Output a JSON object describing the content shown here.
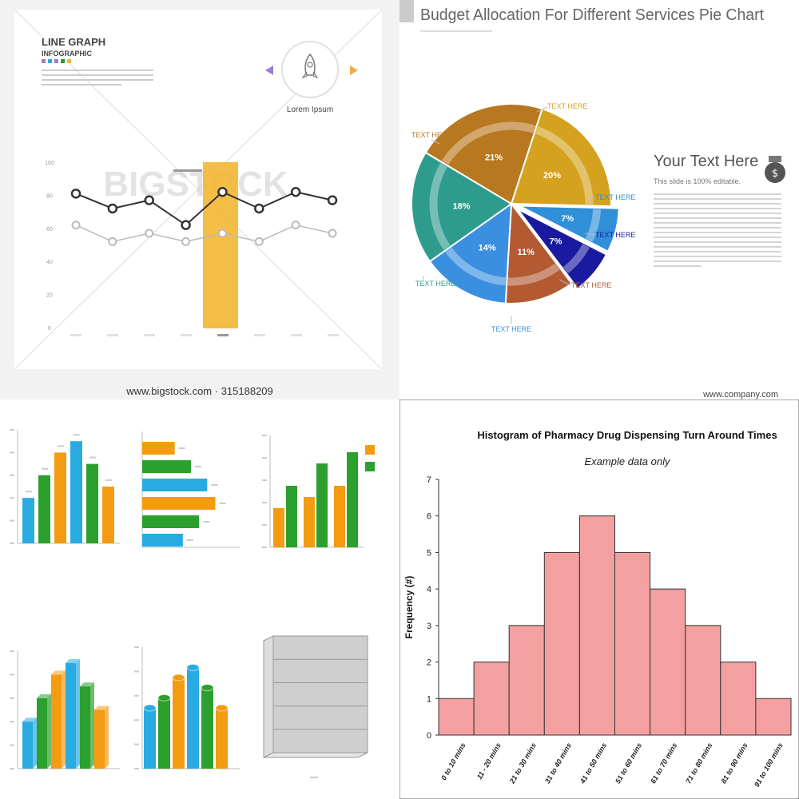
{
  "line_panel": {
    "title_line1": "LINE GRAPH",
    "title_line2": "INFOGRAPHIC",
    "badge_label": "Lorem Ipsum",
    "watermark": "BIGSTOCK",
    "footer": "www.bigstock.com · 315188209",
    "y_ticks": [
      "0",
      "20",
      "40",
      "60",
      "80",
      "100"
    ],
    "colors": {
      "series1": "#333333",
      "series2": "#bbbbbb",
      "highlight": "#f2b632",
      "arrow_left": "#9b7fd1",
      "arrow_right": "#e8b04a"
    }
  },
  "pie_panel": {
    "title": "Budget Allocation For Different Services Pie Chart",
    "side_heading": "Your Text Here",
    "side_sub": "This slide is 100% editable.",
    "footer": "www.company.com",
    "labels": [
      "TEXT HERE",
      "TEXT HERE",
      "TEXT HERE",
      "TEXT HERE",
      "TEXT HERE",
      "TEXT HERE",
      "TEXT HERE"
    ],
    "icon": "money-bag-icon"
  },
  "bars_panel": {
    "colors": {
      "blue": "#29abe2",
      "green": "#2ca02c",
      "orange": "#f39c12"
    }
  },
  "chart_data": [
    {
      "type": "line",
      "title": "LINE GRAPH INFOGRAPHIC",
      "ylim": [
        0,
        100
      ],
      "series": [
        {
          "values": [
            81,
            72,
            77,
            62,
            82,
            72,
            82,
            77
          ]
        },
        {
          "values": [
            62,
            52,
            57,
            52,
            57,
            52,
            62,
            57
          ]
        }
      ]
    },
    {
      "type": "pie",
      "title": "Budget Allocation For Different Services Pie Chart",
      "slices": [
        {
          "label": "20%",
          "value": 20,
          "color": "#d4a21f"
        },
        {
          "label": "7%",
          "value": 7,
          "color": "#2f8fd8"
        },
        {
          "label": "7%",
          "value": 7,
          "color": "#1a1aa0"
        },
        {
          "label": "11%",
          "value": 11,
          "color": "#b35a33"
        },
        {
          "label": "14%",
          "value": 14,
          "color": "#3b8fe0"
        },
        {
          "label": "18%",
          "value": 18,
          "color": "#2e9c8c"
        },
        {
          "label": "21%",
          "value": 21,
          "color": "#b8781f"
        }
      ]
    },
    {
      "type": "bar",
      "title": "Histogram of Pharmacy Drug Dispensing Turn Around Times",
      "subtitle": "Example data only",
      "xlabel": "",
      "ylabel": "Frequency (#)",
      "ylim": [
        0,
        7
      ],
      "yticks": [
        0,
        1,
        2,
        3,
        4,
        5,
        6,
        7
      ],
      "categories": [
        "0 to 10 mins",
        "11 - 20 mins",
        "21 to 30 mins",
        "31 to 40 mins",
        "41 to 50 mins",
        "51 to 60 mins",
        "61 to 70 mins",
        "71 to 80 mins",
        "81 to 90 mins",
        "91 to 100 mins"
      ],
      "values": [
        1,
        2,
        3,
        5,
        6,
        5,
        4,
        3,
        2,
        1
      ],
      "color": "#f4a0a0"
    },
    {
      "type": "bar",
      "values": [
        20,
        30,
        40,
        45,
        35,
        25
      ],
      "ylim": [
        0,
        50
      ]
    },
    {
      "type": "bar",
      "orientation": "horizontal",
      "values": [
        20,
        30,
        40,
        45,
        35,
        25
      ],
      "xlim": [
        0,
        60
      ]
    },
    {
      "type": "bar",
      "series": [
        {
          "values": [
            35,
            45,
            55
          ]
        },
        {
          "values": [
            55,
            75,
            85
          ]
        }
      ],
      "ylim": [
        0,
        100
      ]
    },
    {
      "type": "bar",
      "style": "3d",
      "values": [
        20,
        30,
        40,
        45,
        35,
        25
      ],
      "ylim": [
        0,
        50
      ]
    },
    {
      "type": "bar",
      "style": "cylinder",
      "values": [
        30,
        35,
        45,
        50,
        40,
        30
      ],
      "ylim": [
        0,
        60
      ]
    }
  ]
}
